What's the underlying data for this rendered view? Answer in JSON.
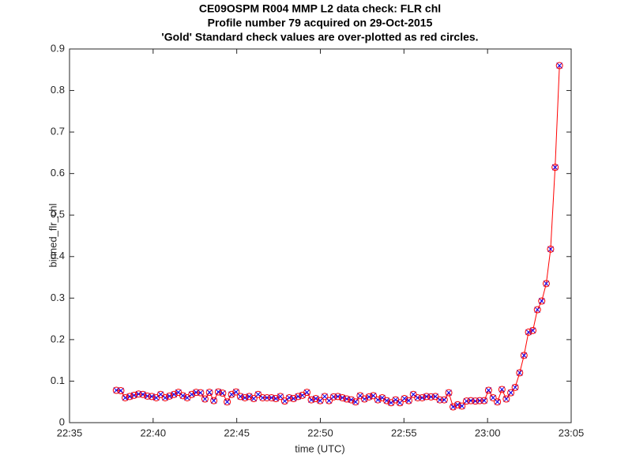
{
  "chart_data": {
    "type": "line",
    "title": [
      "CE09OSPM R004 MMP L2 data check: FLR chl",
      "Profile number 79 acquired on 29-Oct-2015",
      "'Gold' Standard check values are over-plotted as red circles."
    ],
    "x_label": "time (UTC)",
    "y_label": "binned_flr_chl",
    "x": [
      1357.8,
      1358.07,
      1358.33,
      1358.6,
      1358.86,
      1359.13,
      1359.39,
      1359.66,
      1359.92,
      1360.19,
      1360.45,
      1360.72,
      1360.98,
      1361.25,
      1361.51,
      1361.78,
      1362.04,
      1362.31,
      1362.57,
      1362.84,
      1363.1,
      1363.37,
      1363.63,
      1363.9,
      1364.16,
      1364.43,
      1364.69,
      1364.96,
      1365.22,
      1365.49,
      1365.75,
      1366.02,
      1366.28,
      1366.55,
      1366.81,
      1367.08,
      1367.34,
      1367.61,
      1367.87,
      1368.14,
      1368.4,
      1368.67,
      1368.93,
      1369.2,
      1369.46,
      1369.73,
      1369.99,
      1370.26,
      1370.52,
      1370.79,
      1371.05,
      1371.32,
      1371.58,
      1371.85,
      1372.11,
      1372.38,
      1372.64,
      1372.91,
      1373.17,
      1373.44,
      1373.7,
      1373.97,
      1374.23,
      1374.5,
      1374.76,
      1375.03,
      1375.29,
      1375.56,
      1375.82,
      1376.09,
      1376.35,
      1376.62,
      1376.88,
      1377.15,
      1377.41,
      1377.68,
      1377.94,
      1378.21,
      1378.47,
      1378.74,
      1379.0,
      1379.27,
      1379.53,
      1379.8,
      1380.06,
      1380.33,
      1380.59,
      1380.86,
      1381.12,
      1381.39,
      1381.65,
      1381.92,
      1382.18,
      1382.45,
      1382.71,
      1382.98,
      1383.24,
      1383.51,
      1383.77,
      1384.04,
      1384.3
    ],
    "values": [
      0.078,
      0.077,
      0.06,
      0.063,
      0.066,
      0.069,
      0.068,
      0.064,
      0.063,
      0.06,
      0.068,
      0.06,
      0.064,
      0.068,
      0.073,
      0.065,
      0.06,
      0.068,
      0.073,
      0.072,
      0.057,
      0.073,
      0.053,
      0.074,
      0.071,
      0.05,
      0.068,
      0.074,
      0.063,
      0.06,
      0.063,
      0.058,
      0.068,
      0.06,
      0.06,
      0.06,
      0.058,
      0.063,
      0.052,
      0.06,
      0.058,
      0.063,
      0.066,
      0.073,
      0.055,
      0.058,
      0.053,
      0.063,
      0.053,
      0.062,
      0.063,
      0.06,
      0.057,
      0.055,
      0.05,
      0.065,
      0.057,
      0.062,
      0.065,
      0.055,
      0.06,
      0.053,
      0.048,
      0.055,
      0.048,
      0.058,
      0.053,
      0.068,
      0.06,
      0.06,
      0.063,
      0.062,
      0.063,
      0.055,
      0.055,
      0.072,
      0.038,
      0.043,
      0.04,
      0.052,
      0.053,
      0.052,
      0.053,
      0.053,
      0.078,
      0.06,
      0.05,
      0.08,
      0.057,
      0.072,
      0.085,
      0.12,
      0.162,
      0.218,
      0.222,
      0.272,
      0.293,
      0.335,
      0.418,
      0.615,
      0.86
    ],
    "line_color": "#ff0000",
    "circle_color": "#ff0000",
    "cross_color": "#0000ff",
    "xlim": [
      1355,
      1385
    ],
    "xticks": [
      {
        "value": 1355,
        "label": "22:35"
      },
      {
        "value": 1360,
        "label": "22:40"
      },
      {
        "value": 1365,
        "label": "22:45"
      },
      {
        "value": 1370,
        "label": "22:50"
      },
      {
        "value": 1375,
        "label": "22:55"
      },
      {
        "value": 1380,
        "label": "23:00"
      },
      {
        "value": 1385,
        "label": "23:05"
      }
    ],
    "ylim": [
      0,
      0.9
    ],
    "yticks": [
      0,
      0.1,
      0.2,
      0.3,
      0.4,
      0.5,
      0.6,
      0.7,
      0.8,
      0.9
    ],
    "grid": false
  }
}
